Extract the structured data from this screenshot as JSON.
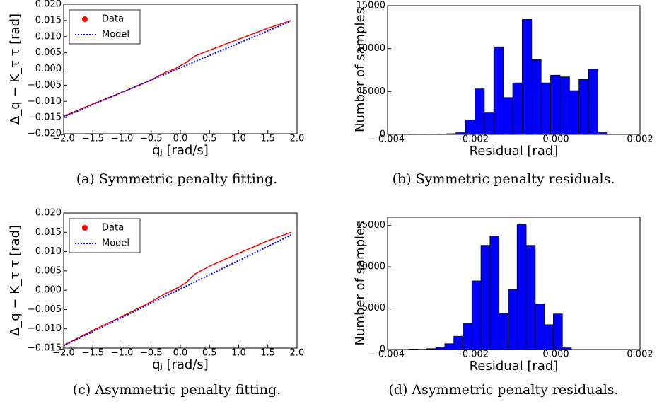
{
  "chart_data": [
    {
      "type": "line",
      "caption": "(a) Symmetric penalty fitting.",
      "xlabel": "q̇ⱼ [rad/s]",
      "ylabel": "Δ_q − K_τ τ [rad]",
      "legend": "upper left",
      "xlim": [
        -2.0,
        2.0
      ],
      "xticks": [
        {
          "value": -2.0,
          "label": "−2.0"
        },
        {
          "value": -1.5,
          "label": "−1.5"
        },
        {
          "value": -1.0,
          "label": "−1.0"
        },
        {
          "value": -0.5,
          "label": "−0.5"
        },
        {
          "value": 0.0,
          "label": "0.0"
        },
        {
          "value": 0.5,
          "label": "0.5"
        },
        {
          "value": 1.0,
          "label": "1.0"
        },
        {
          "value": 1.5,
          "label": "1.5"
        },
        {
          "value": 2.0,
          "label": "2.0"
        }
      ],
      "ylim": [
        -0.02,
        0.02
      ],
      "yticks": [
        {
          "value": -0.02,
          "label": "−0.020"
        },
        {
          "value": -0.015,
          "label": "−0.015"
        },
        {
          "value": -0.01,
          "label": "−0.010"
        },
        {
          "value": -0.005,
          "label": "−0.005"
        },
        {
          "value": 0.0,
          "label": "0.000"
        },
        {
          "value": 0.005,
          "label": "0.005"
        },
        {
          "value": 0.01,
          "label": "0.010"
        },
        {
          "value": 0.015,
          "label": "0.015"
        },
        {
          "value": 0.02,
          "label": "0.020"
        }
      ],
      "series": [
        {
          "name": "Data",
          "color": "#ff0000",
          "marker": "o",
          "x": [
            -2.0,
            -1.5,
            -1.0,
            -0.5,
            -0.25,
            -0.1,
            0.0,
            0.1,
            0.25,
            0.5,
            1.0,
            1.5,
            1.9
          ],
          "values": [
            -0.0146,
            -0.0108,
            -0.0072,
            -0.0034,
            -0.001,
            0.0,
            0.001,
            0.002,
            0.004,
            0.0058,
            0.0092,
            0.0126,
            0.015
          ]
        },
        {
          "name": "Model",
          "color": "#0000ff",
          "linestyle": ":",
          "x": [
            -2.0,
            1.9
          ],
          "values": [
            -0.0148,
            0.0148
          ]
        }
      ]
    },
    {
      "type": "histogram",
      "caption": "(b) Symmetric penalty residuals.",
      "xlabel": "Residual [rad]",
      "ylabel": "Number of samples",
      "color": "#0000ff",
      "xlim": [
        -0.004,
        0.002
      ],
      "xticks": [
        {
          "value": -0.004,
          "label": "−0.004"
        },
        {
          "value": -0.002,
          "label": "−0.002"
        },
        {
          "value": 0.0,
          "label": "0.000"
        },
        {
          "value": 0.002,
          "label": "0.002"
        }
      ],
      "ylim": [
        0,
        15000
      ],
      "yticks": [
        0,
        5000,
        10000,
        15000
      ],
      "bins": [
        -0.0035,
        -0.003275,
        -0.00305,
        -0.002825,
        -0.0026,
        -0.002375,
        -0.00215,
        -0.001925,
        -0.0017,
        -0.001475,
        -0.00125,
        -0.001025,
        -0.0008,
        -0.000575,
        -0.00035,
        -0.000125,
        0.0001,
        0.000325,
        0.00055,
        0.000775,
        0.001,
        0.001225
      ],
      "values": [
        50,
        20,
        10,
        30,
        80,
        200,
        1700,
        5300,
        2500,
        10200,
        4300,
        6000,
        13400,
        8700,
        6000,
        6900,
        6700,
        5100,
        6400,
        7600,
        200
      ]
    },
    {
      "type": "line",
      "caption": "(c) Asymmetric penalty fitting.",
      "xlabel": "q̇ⱼ [rad/s]",
      "ylabel": "Δ_q − K_τ τ [rad]",
      "legend": "upper left",
      "xlim": [
        -2.0,
        2.0
      ],
      "xticks": [
        {
          "value": -2.0,
          "label": "−2.0"
        },
        {
          "value": -1.5,
          "label": "−1.5"
        },
        {
          "value": -1.0,
          "label": "−1.0"
        },
        {
          "value": -0.5,
          "label": "−0.5"
        },
        {
          "value": 0.0,
          "label": "0.0"
        },
        {
          "value": 0.5,
          "label": "0.5"
        },
        {
          "value": 1.0,
          "label": "1.0"
        },
        {
          "value": 1.5,
          "label": "1.5"
        },
        {
          "value": 2.0,
          "label": "2.0"
        }
      ],
      "ylim": [
        -0.015,
        0.02
      ],
      "yticks": [
        {
          "value": -0.015,
          "label": "−0.015"
        },
        {
          "value": -0.01,
          "label": "−0.010"
        },
        {
          "value": -0.005,
          "label": "−0.005"
        },
        {
          "value": 0.0,
          "label": "0.000"
        },
        {
          "value": 0.005,
          "label": "0.005"
        },
        {
          "value": 0.01,
          "label": "0.010"
        },
        {
          "value": 0.015,
          "label": "0.015"
        },
        {
          "value": 0.02,
          "label": "0.020"
        }
      ],
      "series": [
        {
          "name": "Data",
          "color": "#ff0000",
          "marker": "o",
          "x": [
            -2.0,
            -1.5,
            -1.0,
            -0.5,
            -0.25,
            -0.1,
            0.0,
            0.1,
            0.25,
            0.5,
            1.0,
            1.5,
            1.9
          ],
          "values": [
            -0.0143,
            -0.0104,
            -0.0068,
            -0.003,
            -0.0008,
            0.0002,
            0.001,
            0.002,
            0.0042,
            0.0062,
            0.0096,
            0.0128,
            0.015
          ]
        },
        {
          "name": "Model",
          "color": "#0000ff",
          "linestyle": ":",
          "x": [
            -2.0,
            1.9
          ],
          "values": [
            -0.0144,
            0.0143
          ]
        }
      ]
    },
    {
      "type": "histogram",
      "caption": "(d) Asymmetric penalty residuals.",
      "xlabel": "Residual [rad]",
      "ylabel": "Number of samples",
      "color": "#0000ff",
      "xlim": [
        -0.004,
        0.002
      ],
      "xticks": [
        {
          "value": -0.004,
          "label": "−0.004"
        },
        {
          "value": -0.002,
          "label": "−0.002"
        },
        {
          "value": 0.0,
          "label": "0.000"
        },
        {
          "value": 0.002,
          "label": "0.002"
        }
      ],
      "ylim": [
        0,
        16000
      ],
      "yticks": [
        0,
        5000,
        10000,
        15000
      ],
      "bins": [
        -0.0035,
        -0.003285,
        -0.00307,
        -0.002855,
        -0.00264,
        -0.002425,
        -0.00221,
        -0.001995,
        -0.00178,
        -0.001565,
        -0.00135,
        -0.001135,
        -0.00092,
        -0.000705,
        -0.00049,
        -0.000275,
        -6e-05,
        0.000155,
        0.00037
      ],
      "values": [
        50,
        30,
        100,
        300,
        700,
        1600,
        3200,
        8300,
        12600,
        13700,
        4400,
        7300,
        15100,
        12600,
        5500,
        3000,
        4300,
        200
      ]
    }
  ]
}
